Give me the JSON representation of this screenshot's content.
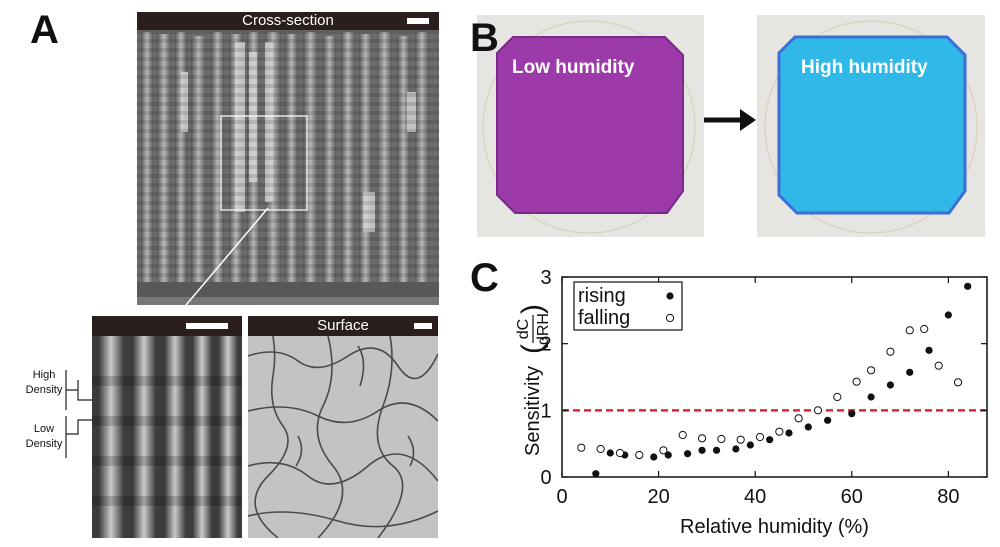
{
  "panels": {
    "a": {
      "letter": "A",
      "cross_section_label": "Cross-section",
      "surface_label": "Surface",
      "high_density_label": [
        "High",
        "Density"
      ],
      "low_density_label": [
        "Low",
        "Density"
      ]
    },
    "b": {
      "letter": "B",
      "low_humidity_label": "Low humidity",
      "high_humidity_label": "High humidity",
      "colors": {
        "low": "#9b3aa8",
        "high": "#2fb8e8"
      }
    },
    "c": {
      "letter": "C"
    }
  },
  "chart_data": {
    "type": "scatter",
    "xlabel": "Relative humidity (%)",
    "ylabel_prefix": "Sensitivity",
    "ylabel_fraction": {
      "numerator": "dC",
      "denominator": "dRH"
    },
    "xlim": [
      0,
      88
    ],
    "ylim": [
      0,
      3
    ],
    "xticks": [
      0,
      20,
      40,
      60,
      80
    ],
    "yticks": [
      0,
      1,
      2,
      3
    ],
    "reference_line": {
      "y": 1,
      "color": "#d42a3a",
      "style": "dashed"
    },
    "legend": {
      "placement": "top-left"
    },
    "series": [
      {
        "name": "rising",
        "marker": "filled",
        "points": [
          [
            7,
            0.05
          ],
          [
            10,
            0.36
          ],
          [
            13,
            0.33
          ],
          [
            16,
            0.32
          ],
          [
            19,
            0.3
          ],
          [
            22,
            0.33
          ],
          [
            26,
            0.35
          ],
          [
            29,
            0.4
          ],
          [
            32,
            0.4
          ],
          [
            36,
            0.42
          ],
          [
            39,
            0.48
          ],
          [
            43,
            0.56
          ],
          [
            47,
            0.66
          ],
          [
            51,
            0.75
          ],
          [
            55,
            0.85
          ],
          [
            60,
            0.95
          ],
          [
            64,
            1.2
          ],
          [
            68,
            1.38
          ],
          [
            72,
            1.57
          ],
          [
            76,
            1.9
          ],
          [
            80,
            2.43
          ],
          [
            84,
            2.86
          ]
        ]
      },
      {
        "name": "falling",
        "marker": "open",
        "points": [
          [
            4,
            0.44
          ],
          [
            8,
            0.42
          ],
          [
            12,
            0.36
          ],
          [
            16,
            0.33
          ],
          [
            21,
            0.4
          ],
          [
            25,
            0.63
          ],
          [
            29,
            0.58
          ],
          [
            33,
            0.57
          ],
          [
            37,
            0.56
          ],
          [
            41,
            0.6
          ],
          [
            45,
            0.68
          ],
          [
            49,
            0.88
          ],
          [
            53,
            1.0
          ],
          [
            57,
            1.2
          ],
          [
            61,
            1.43
          ],
          [
            64,
            1.6
          ],
          [
            68,
            1.88
          ],
          [
            72,
            2.2
          ],
          [
            75,
            2.22
          ],
          [
            78,
            1.67
          ],
          [
            82,
            1.42
          ]
        ]
      }
    ]
  }
}
